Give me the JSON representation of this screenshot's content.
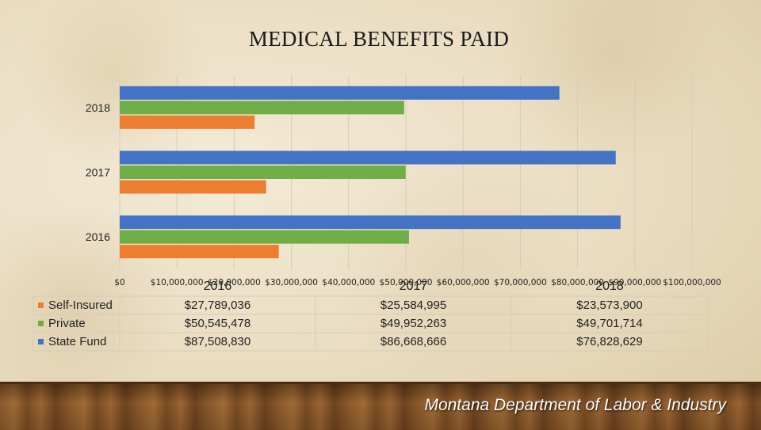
{
  "title": "MEDICAL BENEFITS PAID",
  "footer": "Montana Department of Labor & Industry",
  "chart_data": {
    "type": "bar",
    "orientation": "horizontal",
    "categories": [
      "2016",
      "2017",
      "2018"
    ],
    "series": [
      {
        "name": "Self-Insured",
        "color": "#ed7d31",
        "values": [
          27789036,
          25584995,
          23573900
        ],
        "labels": [
          "$27,789,036",
          "$25,584,995",
          "$23,573,900"
        ]
      },
      {
        "name": "Private",
        "color": "#70ad47",
        "values": [
          50545478,
          49952263,
          49701714
        ],
        "labels": [
          "$50,545,478",
          "$49,952,263",
          "$49,701,714"
        ]
      },
      {
        "name": "State Fund",
        "color": "#4472c4",
        "values": [
          87508830,
          86668666,
          76828629
        ],
        "labels": [
          "$87,508,830",
          "$86,668,666",
          "$76,828,629"
        ]
      }
    ],
    "xlim": [
      0,
      100000000
    ],
    "ticks": [
      "$0",
      "$10,000,000",
      "$20,000,000",
      "$30,000,000",
      "$40,000,000",
      "$50,000,000",
      "$60,000,000",
      "$70,000,000",
      "$80,000,000",
      "$90,000,000",
      "$100,000,000"
    ],
    "grid": true,
    "legend": "data-table-below"
  }
}
